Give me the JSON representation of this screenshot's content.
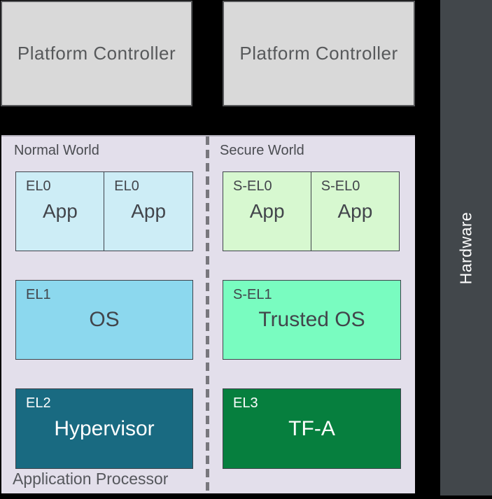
{
  "colors": {
    "background": "#000000",
    "controller_fill": "#d9d9d9",
    "controller_border": "#57585a",
    "hardware_fill": "#42474b",
    "panel_fill": "#e3dfeb",
    "divider_gray": "#78777d",
    "el0_fill": "#cdedf6",
    "sel0_fill": "#d7f8d0",
    "el1_fill": "#8cd8ee",
    "sel1_fill": "#79fcc0",
    "el2_fill": "#196a81",
    "el3_fill": "#067f3e"
  },
  "platform_controllers": [
    {
      "label": "Platform Controller"
    },
    {
      "label": "Platform Controller"
    }
  ],
  "hardware": {
    "label": "Hardware"
  },
  "processor": {
    "label": "Application Processor",
    "normal_world": {
      "label": "Normal World",
      "apps": [
        {
          "level": "EL0",
          "name": "App"
        },
        {
          "level": "EL0",
          "name": "App"
        }
      ],
      "os": {
        "level": "EL1",
        "name": "OS"
      },
      "hypervisor": {
        "level": "EL2",
        "name": "Hypervisor"
      }
    },
    "secure_world": {
      "label": "Secure World",
      "apps": [
        {
          "level": "S-EL0",
          "name": "App"
        },
        {
          "level": "S-EL0",
          "name": "App"
        }
      ],
      "trusted_os": {
        "level": "S-EL1",
        "name": "Trusted OS"
      },
      "firmware": {
        "level": "EL3",
        "name": "TF-A"
      }
    }
  }
}
